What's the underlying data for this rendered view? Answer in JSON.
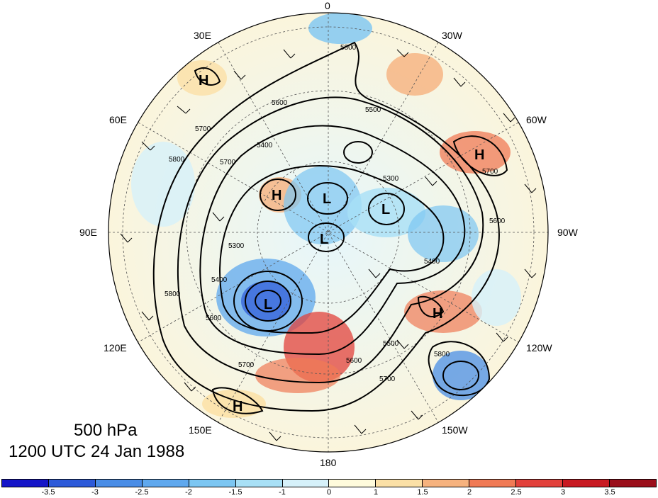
{
  "title": {
    "level": "500 hPa",
    "time": "1200 UTC 24 Jan 1988"
  },
  "longitude_labels": [
    "0",
    "30W",
    "60W",
    "90W",
    "120W",
    "150W",
    "180",
    "150E",
    "120E",
    "90E",
    "60E",
    "30E"
  ],
  "pressure_centers": [
    {
      "letter": "H",
      "id": "high-30e"
    },
    {
      "letter": "H",
      "id": "high-60w"
    },
    {
      "letter": "H",
      "id": "high-center-west"
    },
    {
      "letter": "L",
      "id": "low-center-1"
    },
    {
      "letter": "L",
      "id": "low-center-2"
    },
    {
      "letter": "L",
      "id": "low-center-3"
    },
    {
      "letter": "L",
      "id": "low-siberia"
    },
    {
      "letter": "H",
      "id": "high-120w"
    },
    {
      "letter": "H",
      "id": "high-150e"
    }
  ],
  "contour_labels": [
    "5800",
    "5600",
    "5700",
    "5700",
    "5400",
    "5500",
    "5300",
    "5700",
    "5600",
    "5800",
    "5300",
    "5400",
    "5700",
    "5800",
    "5400",
    "5600",
    "5700",
    "5600",
    "5500",
    "5800"
  ],
  "colorbar": {
    "tick_labels": [
      "-3.5",
      "-3",
      "-2.5",
      "-2",
      "-1.5",
      "-1",
      "0",
      "1",
      "1.5",
      "2",
      "2.5",
      "3",
      "3.5"
    ],
    "colors": [
      "#1515c8",
      "#2d5ad9",
      "#4a8de6",
      "#5fa8ee",
      "#7cc6f2",
      "#a8e0f6",
      "#d6f1fa",
      "#fffbdc",
      "#fbe0a6",
      "#f6b27e",
      "#f07a55",
      "#e2413b",
      "#c81a22",
      "#9a0e1a"
    ]
  }
}
